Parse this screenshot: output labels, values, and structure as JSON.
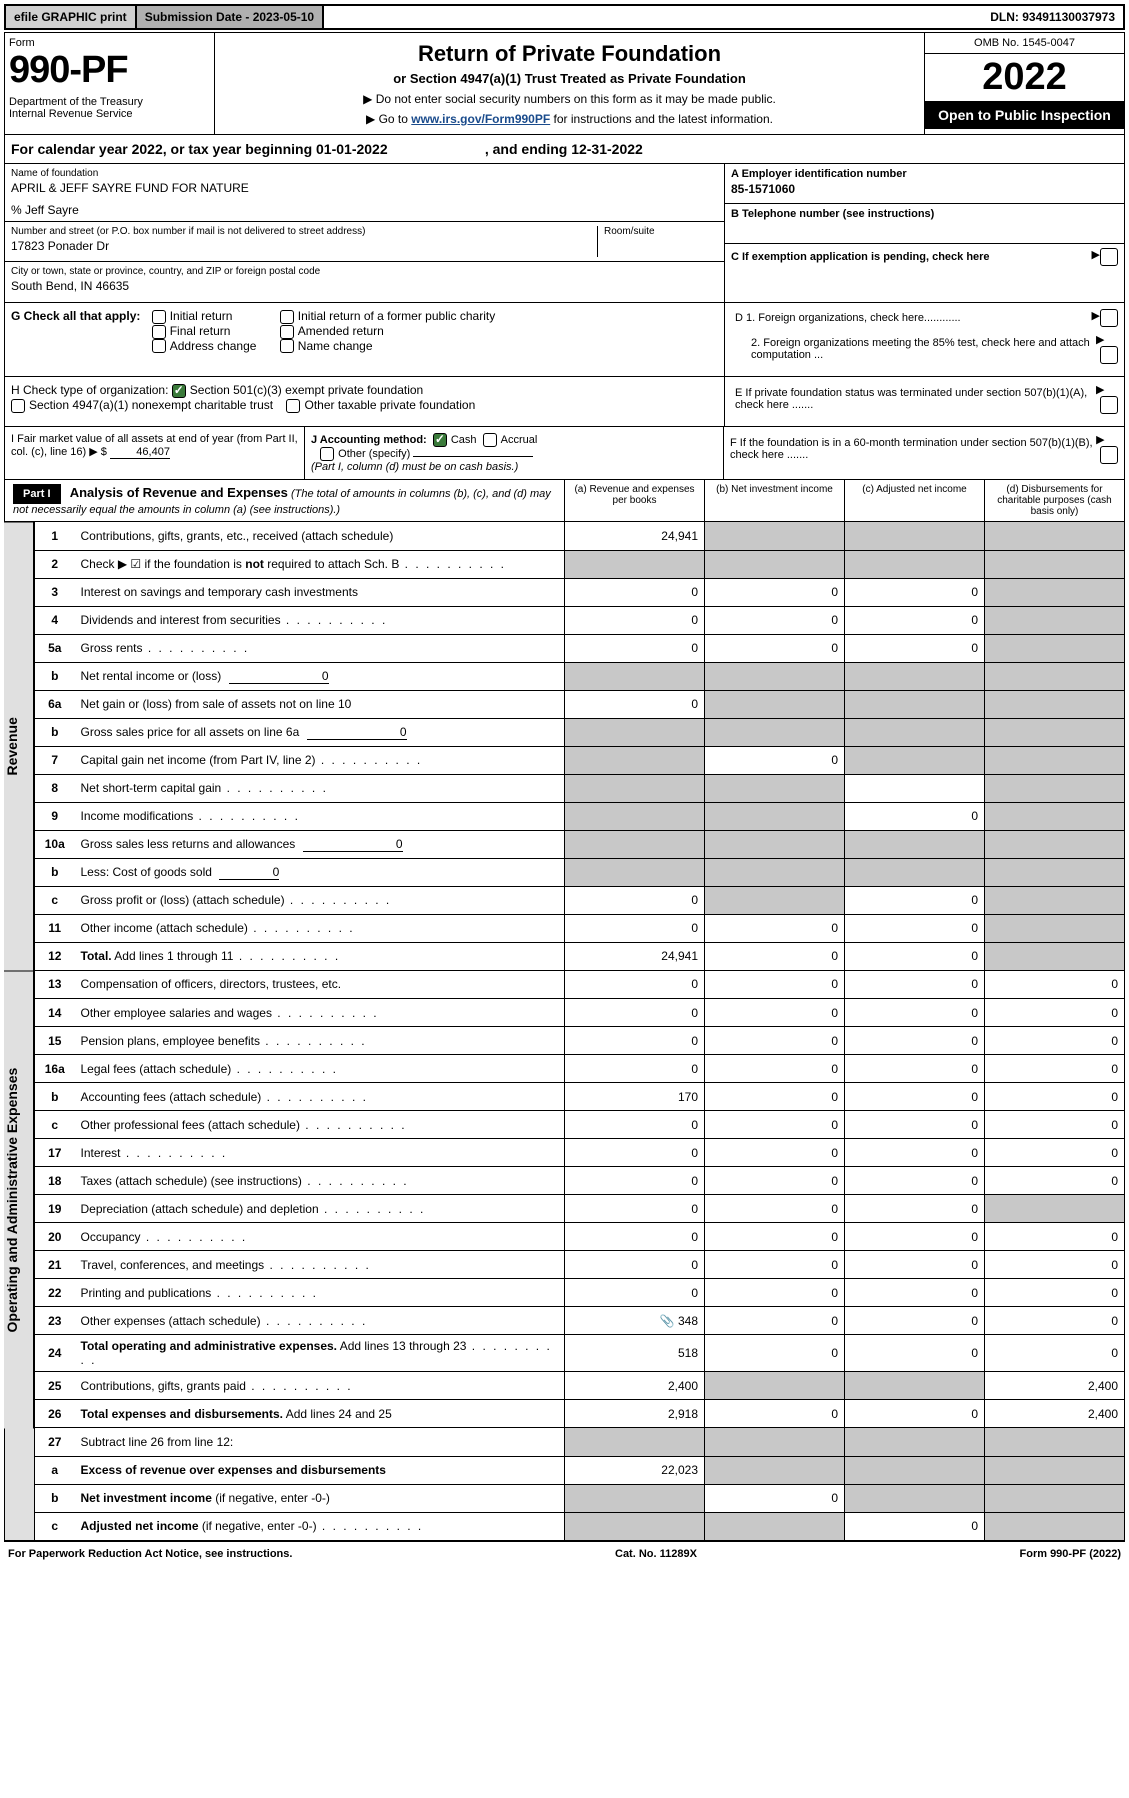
{
  "topbar": {
    "efile": "efile GRAPHIC print",
    "subdate_label": "Submission Date - 2023-05-10",
    "dln": "DLN: 93491130037973"
  },
  "header": {
    "form_label": "Form",
    "form_no": "990-PF",
    "dept": "Department of the Treasury\nInternal Revenue Service",
    "title": "Return of Private Foundation",
    "subtitle": "or Section 4947(a)(1) Trust Treated as Private Foundation",
    "instr1": "▶ Do not enter social security numbers on this form as it may be made public.",
    "instr2_pre": "▶ Go to ",
    "instr2_link": "www.irs.gov/Form990PF",
    "instr2_post": " for instructions and the latest information.",
    "omb": "OMB No. 1545-0047",
    "year": "2022",
    "open": "Open to Public Inspection"
  },
  "calendar": "For calendar year 2022, or tax year beginning 01-01-2022                         , and ending 12-31-2022",
  "info": {
    "name_label": "Name of foundation",
    "name_val": "APRIL & JEFF SAYRE FUND FOR NATURE",
    "care_of": "% Jeff Sayre",
    "addr_label": "Number and street (or P.O. box number if mail is not delivered to street address)",
    "addr_val": "17823 Ponader Dr",
    "room_label": "Room/suite",
    "city_label": "City or town, state or province, country, and ZIP or foreign postal code",
    "city_val": "South Bend, IN  46635",
    "a_label": "A Employer identification number",
    "a_val": "85-1571060",
    "b_label": "B Telephone number (see instructions)",
    "c_label": "C If exemption application is pending, check here",
    "d1_label": "D 1. Foreign organizations, check here............",
    "d2_label": "2. Foreign organizations meeting the 85% test, check here and attach computation ...",
    "e_label": "E  If private foundation status was terminated under section 507(b)(1)(A), check here .......",
    "f_label": "F  If the foundation is in a 60-month termination under section 507(b)(1)(B), check here ......."
  },
  "g": {
    "label": "G Check all that apply:",
    "opts": [
      "Initial return",
      "Final return",
      "Address change",
      "Initial return of a former public charity",
      "Amended return",
      "Name change"
    ]
  },
  "h": {
    "label": "H Check type of organization:",
    "opt1": "Section 501(c)(3) exempt private foundation",
    "opt2": "Section 4947(a)(1) nonexempt charitable trust",
    "opt3": "Other taxable private foundation"
  },
  "i": {
    "label": "I Fair market value of all assets at end of year (from Part II, col. (c), line 16)",
    "val": "46,407"
  },
  "j": {
    "label": "J Accounting method:",
    "cash": "Cash",
    "accrual": "Accrual",
    "other": "Other (specify)",
    "note": "(Part I, column (d) must be on cash basis.)"
  },
  "part1": {
    "label": "Part I",
    "title": "Analysis of Revenue and Expenses",
    "note": "(The total of amounts in columns (b), (c), and (d) may not necessarily equal the amounts in column (a) (see instructions).)",
    "col_a": "(a)  Revenue and expenses per books",
    "col_b": "(b)  Net investment income",
    "col_c": "(c)  Adjusted net income",
    "col_d": "(d)  Disbursements for charitable purposes (cash basis only)"
  },
  "sections": {
    "revenue": "Revenue",
    "expenses": "Operating and Administrative Expenses"
  },
  "rows": [
    {
      "n": "1",
      "d": "Contributions, gifts, grants, etc., received (attach schedule)",
      "a": "24,941",
      "b": "",
      "c": "",
      "dv": "",
      "sb": "s",
      "sc": "s",
      "sd": "s"
    },
    {
      "n": "2",
      "d": "Check ▶ ☑ if the foundation is <b>not</b> required to attach Sch. B",
      "a": "",
      "b": "",
      "c": "",
      "dv": "",
      "sa": "s",
      "sb": "s",
      "sc": "s",
      "sd": "s",
      "dots": 1
    },
    {
      "n": "3",
      "d": "Interest on savings and temporary cash investments",
      "a": "0",
      "b": "0",
      "c": "0",
      "dv": "",
      "sd": "s"
    },
    {
      "n": "4",
      "d": "Dividends and interest from securities",
      "a": "0",
      "b": "0",
      "c": "0",
      "dv": "",
      "sd": "s",
      "dots": 1
    },
    {
      "n": "5a",
      "d": "Gross rents",
      "a": "0",
      "b": "0",
      "c": "0",
      "dv": "",
      "sd": "s",
      "dots": 1
    },
    {
      "n": "b",
      "d": "Net rental income or (loss) <span class='inline-under'>0</span>",
      "a": "",
      "b": "",
      "c": "",
      "dv": "",
      "sa": "s",
      "sb": "s",
      "sc": "s",
      "sd": "s"
    },
    {
      "n": "6a",
      "d": "Net gain or (loss) from sale of assets not on line 10",
      "a": "0",
      "b": "",
      "c": "",
      "dv": "",
      "sb": "s",
      "sc": "s",
      "sd": "s"
    },
    {
      "n": "b",
      "d": "Gross sales price for all assets on line 6a <span class='inline-under'>0</span>",
      "a": "",
      "b": "",
      "c": "",
      "dv": "",
      "sa": "s",
      "sb": "s",
      "sc": "s",
      "sd": "s"
    },
    {
      "n": "7",
      "d": "Capital gain net income (from Part IV, line 2)",
      "a": "",
      "b": "0",
      "c": "",
      "dv": "",
      "sa": "s",
      "sc": "s",
      "sd": "s",
      "dots": 1
    },
    {
      "n": "8",
      "d": "Net short-term capital gain",
      "a": "",
      "b": "",
      "c": "",
      "dv": "",
      "sa": "s",
      "sb": "s",
      "sd": "s",
      "dots": 1
    },
    {
      "n": "9",
      "d": "Income modifications",
      "a": "",
      "b": "",
      "c": "0",
      "dv": "",
      "sa": "s",
      "sb": "s",
      "sd": "s",
      "dots": 1
    },
    {
      "n": "10a",
      "d": "Gross sales less returns and allowances <span class='inline-under'>0</span>",
      "a": "",
      "b": "",
      "c": "",
      "dv": "",
      "sa": "s",
      "sb": "s",
      "sc": "s",
      "sd": "s"
    },
    {
      "n": "b",
      "d": "Less: Cost of goods sold <span class='inline-under' style='min-width:60px'>0</span>",
      "a": "",
      "b": "",
      "c": "",
      "dv": "",
      "sa": "s",
      "sb": "s",
      "sc": "s",
      "sd": "s"
    },
    {
      "n": "c",
      "d": "Gross profit or (loss) (attach schedule)",
      "a": "0",
      "b": "",
      "c": "0",
      "dv": "",
      "sb": "s",
      "sd": "s",
      "dots": 1
    },
    {
      "n": "11",
      "d": "Other income (attach schedule)",
      "a": "0",
      "b": "0",
      "c": "0",
      "dv": "",
      "sd": "s",
      "dots": 1
    },
    {
      "n": "12",
      "d": "<b>Total.</b> Add lines 1 through 11",
      "a": "24,941",
      "b": "0",
      "c": "0",
      "dv": "",
      "sd": "s",
      "dots": 1
    }
  ],
  "exp_rows": [
    {
      "n": "13",
      "d": "Compensation of officers, directors, trustees, etc.",
      "a": "0",
      "b": "0",
      "c": "0",
      "dv": "0"
    },
    {
      "n": "14",
      "d": "Other employee salaries and wages",
      "a": "0",
      "b": "0",
      "c": "0",
      "dv": "0",
      "dots": 1
    },
    {
      "n": "15",
      "d": "Pension plans, employee benefits",
      "a": "0",
      "b": "0",
      "c": "0",
      "dv": "0",
      "dots": 1
    },
    {
      "n": "16a",
      "d": "Legal fees (attach schedule)",
      "a": "0",
      "b": "0",
      "c": "0",
      "dv": "0",
      "dots": 1
    },
    {
      "n": "b",
      "d": "Accounting fees (attach schedule)",
      "a": "170",
      "b": "0",
      "c": "0",
      "dv": "0",
      "dots": 1
    },
    {
      "n": "c",
      "d": "Other professional fees (attach schedule)",
      "a": "0",
      "b": "0",
      "c": "0",
      "dv": "0",
      "dots": 1
    },
    {
      "n": "17",
      "d": "Interest",
      "a": "0",
      "b": "0",
      "c": "0",
      "dv": "0",
      "dots": 1
    },
    {
      "n": "18",
      "d": "Taxes (attach schedule) (see instructions)",
      "a": "0",
      "b": "0",
      "c": "0",
      "dv": "0",
      "dots": 1
    },
    {
      "n": "19",
      "d": "Depreciation (attach schedule) and depletion",
      "a": "0",
      "b": "0",
      "c": "0",
      "dv": "",
      "sd": "s",
      "dots": 1
    },
    {
      "n": "20",
      "d": "Occupancy",
      "a": "0",
      "b": "0",
      "c": "0",
      "dv": "0",
      "dots": 1
    },
    {
      "n": "21",
      "d": "Travel, conferences, and meetings",
      "a": "0",
      "b": "0",
      "c": "0",
      "dv": "0",
      "dots": 1
    },
    {
      "n": "22",
      "d": "Printing and publications",
      "a": "0",
      "b": "0",
      "c": "0",
      "dv": "0",
      "dots": 1
    },
    {
      "n": "23",
      "d": "Other expenses (attach schedule)",
      "a": "348",
      "b": "0",
      "c": "0",
      "dv": "0",
      "icon": 1,
      "dots": 1
    },
    {
      "n": "24",
      "d": "<b>Total operating and administrative expenses.</b> Add lines 13 through 23",
      "a": "518",
      "b": "0",
      "c": "0",
      "dv": "0",
      "dots": 1
    },
    {
      "n": "25",
      "d": "Contributions, gifts, grants paid",
      "a": "2,400",
      "b": "",
      "c": "",
      "dv": "2,400",
      "sb": "s",
      "sc": "s",
      "dots": 1
    },
    {
      "n": "26",
      "d": "<b>Total expenses and disbursements.</b> Add lines 24 and 25",
      "a": "2,918",
      "b": "0",
      "c": "0",
      "dv": "2,400"
    }
  ],
  "final_rows": [
    {
      "n": "27",
      "d": "Subtract line 26 from line 12:",
      "a": "",
      "b": "",
      "c": "",
      "dv": "",
      "sa": "s",
      "sb": "s",
      "sc": "s",
      "sd": "s"
    },
    {
      "n": "a",
      "d": "<b>Excess of revenue over expenses and disbursements</b>",
      "a": "22,023",
      "b": "",
      "c": "",
      "dv": "",
      "sb": "s",
      "sc": "s",
      "sd": "s"
    },
    {
      "n": "b",
      "d": "<b>Net investment income</b> (if negative, enter -0-)",
      "a": "",
      "b": "0",
      "c": "",
      "dv": "",
      "sa": "s",
      "sc": "s",
      "sd": "s"
    },
    {
      "n": "c",
      "d": "<b>Adjusted net income</b> (if negative, enter -0-)",
      "a": "",
      "b": "",
      "c": "0",
      "dv": "",
      "sa": "s",
      "sb": "s",
      "sd": "s",
      "dots": 1
    }
  ],
  "footer": {
    "left": "For Paperwork Reduction Act Notice, see instructions.",
    "mid": "Cat. No. 11289X",
    "right": "Form 990-PF (2022)"
  },
  "colors": {
    "shaded": "#c8c8c8",
    "topbar_efile": "#d0d0d0",
    "topbar_sub": "#b0b0b0",
    "link": "#1a4b8c",
    "check_green": "#3a7a3a"
  }
}
